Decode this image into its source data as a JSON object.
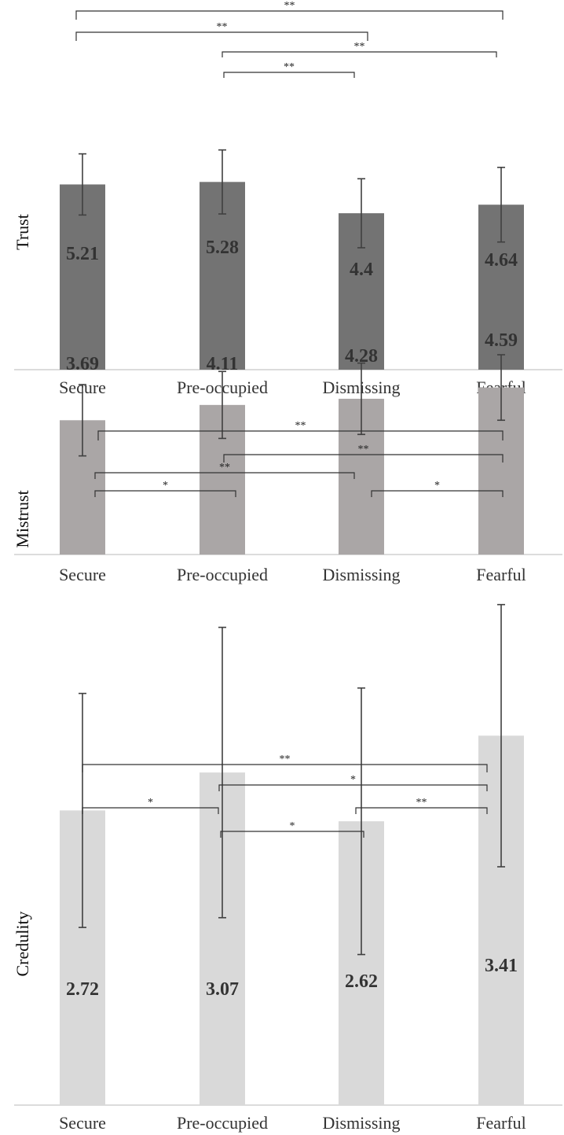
{
  "chart_data": [
    {
      "type": "bar",
      "ylabel": "Trust",
      "categories": [
        "Secure",
        "Pre-occupied",
        "Dismissing",
        "Fearful"
      ],
      "values": [
        5.21,
        5.28,
        4.4,
        4.64
      ],
      "value_labels": [
        "5.21",
        "5.28",
        "4.4",
        "4.64"
      ],
      "error": [
        0.86,
        0.9,
        0.97,
        1.05
      ],
      "ylim": [
        0,
        7.3
      ],
      "bar_color": "#737373",
      "significance": [
        {
          "from": 0,
          "to": 3,
          "label": "**"
        },
        {
          "from": 0,
          "to": 2,
          "label": "**"
        },
        {
          "from": 1,
          "to": 3,
          "label": "**"
        },
        {
          "from": 1,
          "to": 2,
          "label": "**"
        }
      ]
    },
    {
      "type": "bar",
      "ylabel": "Mistrust",
      "categories": [
        "Secure",
        "Pre-occupied",
        "Dismissing",
        "Fearful"
      ],
      "values": [
        3.69,
        4.11,
        4.28,
        4.59
      ],
      "value_labels": [
        "3.69",
        "4.11",
        "4.28",
        "4.59"
      ],
      "error": [
        0.98,
        0.92,
        0.98,
        0.9
      ],
      "ylim": [
        0,
        6.7
      ],
      "bar_color": "#aaa6a6",
      "significance": [
        {
          "from": 0,
          "to": 3,
          "label": "**"
        },
        {
          "from": 1,
          "to": 3,
          "label": "**"
        },
        {
          "from": 0,
          "to": 2,
          "label": "**"
        },
        {
          "from": 0,
          "to": 1,
          "label": "*"
        },
        {
          "from": 2,
          "to": 3,
          "label": "*"
        }
      ]
    },
    {
      "type": "bar",
      "ylabel": "Credulity",
      "categories": [
        "Secure",
        "Pre-occupied",
        "Dismissing",
        "Fearful"
      ],
      "values": [
        2.72,
        3.07,
        2.62,
        3.41
      ],
      "value_labels": [
        "2.72",
        "3.07",
        "2.62",
        "3.41"
      ],
      "error": [
        1.08,
        1.34,
        1.23,
        1.21
      ],
      "ylim": [
        0,
        5.3
      ],
      "bar_color": "#d9d9d9",
      "significance": [
        {
          "from": 0,
          "to": 3,
          "label": "**"
        },
        {
          "from": 1,
          "to": 3,
          "label": "*"
        },
        {
          "from": 0,
          "to": 1,
          "label": "*"
        },
        {
          "from": 2,
          "to": 3,
          "label": "**"
        },
        {
          "from": 1,
          "to": 2,
          "label": "*"
        }
      ]
    }
  ]
}
